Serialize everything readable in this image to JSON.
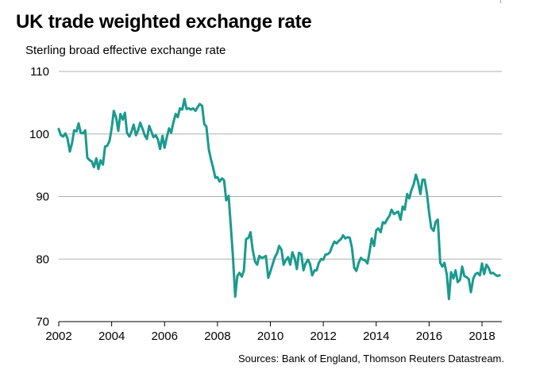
{
  "header": {
    "title": "UK trade weighted exchange rate",
    "subtitle": "Sterling broad effective exchange rate"
  },
  "footer": {
    "source": "Sources: Bank of England, Thomson Reuters Datastream."
  },
  "colors": {
    "line": "#1a9a8e",
    "grid": "#b0b0b0",
    "axis": "#000000"
  },
  "chart_data": {
    "type": "line",
    "title": "UK trade weighted exchange rate",
    "subtitle": "Sterling broad effective exchange rate",
    "xlabel": "",
    "ylabel": "",
    "xlim": [
      2002,
      2018.75
    ],
    "ylim": [
      70,
      110
    ],
    "grid": "horizontal",
    "x_ticks": [
      2002,
      2004,
      2006,
      2008,
      2010,
      2012,
      2014,
      2016,
      2018
    ],
    "x_tick_labels": [
      "2002",
      "2004",
      "2006",
      "2008",
      "2010",
      "2012",
      "2014",
      "2016",
      "2018"
    ],
    "y_ticks": [
      70,
      80,
      90,
      100,
      110
    ],
    "y_tick_labels": [
      "70",
      "80",
      "90",
      "100",
      "110"
    ],
    "series": [
      {
        "x": [
          2002.0,
          2002.08,
          2002.17,
          2002.25,
          2002.33,
          2002.42,
          2002.5,
          2002.58,
          2002.67,
          2002.75,
          2002.83,
          2002.92,
          2003.0,
          2003.08,
          2003.17,
          2003.25,
          2003.33,
          2003.42,
          2003.5,
          2003.58,
          2003.67,
          2003.75,
          2003.83,
          2003.92,
          2004.0,
          2004.08,
          2004.17,
          2004.25,
          2004.33,
          2004.42,
          2004.5,
          2004.58,
          2004.67,
          2004.75,
          2004.83,
          2004.92,
          2005.0,
          2005.08,
          2005.17,
          2005.25,
          2005.33,
          2005.42,
          2005.5,
          2005.58,
          2005.67,
          2005.75,
          2005.83,
          2005.92,
          2006.0,
          2006.08,
          2006.17,
          2006.25,
          2006.33,
          2006.42,
          2006.5,
          2006.58,
          2006.67,
          2006.75,
          2006.83,
          2006.92,
          2007.0,
          2007.08,
          2007.17,
          2007.25,
          2007.33,
          2007.42,
          2007.5,
          2007.58,
          2007.67,
          2007.75,
          2007.83,
          2007.92,
          2008.0,
          2008.08,
          2008.17,
          2008.25,
          2008.33,
          2008.42,
          2008.5,
          2008.58,
          2008.67,
          2008.75,
          2008.83,
          2008.92,
          2009.0,
          2009.08,
          2009.17,
          2009.25,
          2009.33,
          2009.42,
          2009.5,
          2009.58,
          2009.67,
          2009.75,
          2009.83,
          2009.92,
          2010.0,
          2010.08,
          2010.17,
          2010.25,
          2010.33,
          2010.42,
          2010.5,
          2010.58,
          2010.67,
          2010.75,
          2010.83,
          2010.92,
          2011.0,
          2011.08,
          2011.17,
          2011.25,
          2011.33,
          2011.42,
          2011.5,
          2011.58,
          2011.67,
          2011.75,
          2011.83,
          2011.92,
          2012.0,
          2012.08,
          2012.17,
          2012.25,
          2012.33,
          2012.42,
          2012.5,
          2012.58,
          2012.67,
          2012.75,
          2012.83,
          2012.92,
          2013.0,
          2013.08,
          2013.17,
          2013.25,
          2013.33,
          2013.42,
          2013.5,
          2013.58,
          2013.67,
          2013.75,
          2013.83,
          2013.92,
          2014.0,
          2014.08,
          2014.17,
          2014.25,
          2014.33,
          2014.42,
          2014.5,
          2014.58,
          2014.67,
          2014.75,
          2014.83,
          2014.92,
          2015.0,
          2015.08,
          2015.17,
          2015.25,
          2015.33,
          2015.42,
          2015.5,
          2015.58,
          2015.67,
          2015.75,
          2015.83,
          2015.92,
          2016.0,
          2016.08,
          2016.17,
          2016.25,
          2016.33,
          2016.42,
          2016.5,
          2016.58,
          2016.67,
          2016.75,
          2016.83,
          2016.92,
          2017.0,
          2017.08,
          2017.17,
          2017.25,
          2017.33,
          2017.42,
          2017.5,
          2017.58,
          2017.67,
          2017.75,
          2017.83,
          2017.92,
          2018.0,
          2018.08,
          2018.17,
          2018.25,
          2018.33,
          2018.42,
          2018.5,
          2018.58,
          2018.67
        ],
        "values": [
          100.8,
          99.8,
          99.6,
          100.1,
          99.3,
          97.2,
          98.5,
          100.6,
          100.4,
          101.7,
          100.2,
          100.1,
          100.6,
          96.2,
          95.8,
          95.6,
          94.7,
          96.1,
          94.4,
          95.8,
          95.1,
          98.0,
          98.1,
          98.9,
          100.9,
          103.7,
          102.6,
          100.5,
          103.2,
          102.3,
          103.4,
          100.2,
          99.6,
          100.4,
          101.5,
          99.8,
          100.6,
          101.8,
          100.8,
          99.8,
          99.2,
          101.3,
          100.4,
          99.5,
          99.8,
          99.1,
          97.6,
          99.7,
          97.8,
          99.4,
          100.9,
          100.2,
          101.8,
          103.2,
          102.7,
          104.1,
          103.9,
          105.6,
          104.0,
          104.1,
          103.9,
          104.1,
          103.7,
          104.3,
          104.8,
          104.5,
          101.6,
          101.2,
          97.6,
          96.0,
          94.7,
          93.0,
          93.1,
          92.4,
          92.9,
          92.6,
          89.4,
          90.1,
          85.5,
          80.7,
          74.0,
          77.3,
          77.8,
          77.2,
          78.2,
          83.2,
          83.4,
          84.3,
          81.5,
          79.6,
          79.1,
          80.5,
          80.2,
          80.3,
          80.5,
          77.0,
          78.0,
          79.1,
          80.3,
          80.9,
          82.1,
          81.5,
          79.1,
          79.8,
          80.3,
          79.1,
          81.1,
          80.1,
          78.4,
          81.0,
          80.8,
          78.2,
          79.3,
          79.9,
          79.2,
          77.4,
          78.2,
          78.2,
          79.4,
          80.0,
          79.9,
          80.7,
          80.8,
          81.1,
          82.0,
          82.8,
          82.5,
          82.9,
          83.2,
          83.8,
          83.3,
          83.5,
          83.4,
          81.9,
          78.6,
          78.1,
          79.3,
          80.2,
          79.9,
          79.8,
          79.3,
          81.2,
          83.3,
          82.1,
          84.6,
          84.9,
          84.3,
          85.9,
          85.7,
          86.4,
          86.9,
          87.9,
          87.2,
          87.4,
          87.6,
          86.3,
          88.4,
          87.9,
          90.4,
          89.7,
          91.0,
          92.0,
          93.5,
          92.4,
          90.4,
          92.7,
          92.7,
          90.4,
          87.4,
          85.0,
          84.5,
          86.0,
          86.3,
          79.4,
          78.8,
          79.4,
          77.5,
          73.6,
          77.9,
          76.9,
          78.2,
          76.3,
          76.7,
          78.8,
          77.3,
          77.1,
          76.8,
          74.7,
          76.9,
          77.6,
          77.8,
          77.4,
          79.3,
          77.6,
          79.1,
          78.6,
          77.7,
          77.8,
          77.5,
          77.3,
          77.4
        ]
      }
    ]
  }
}
